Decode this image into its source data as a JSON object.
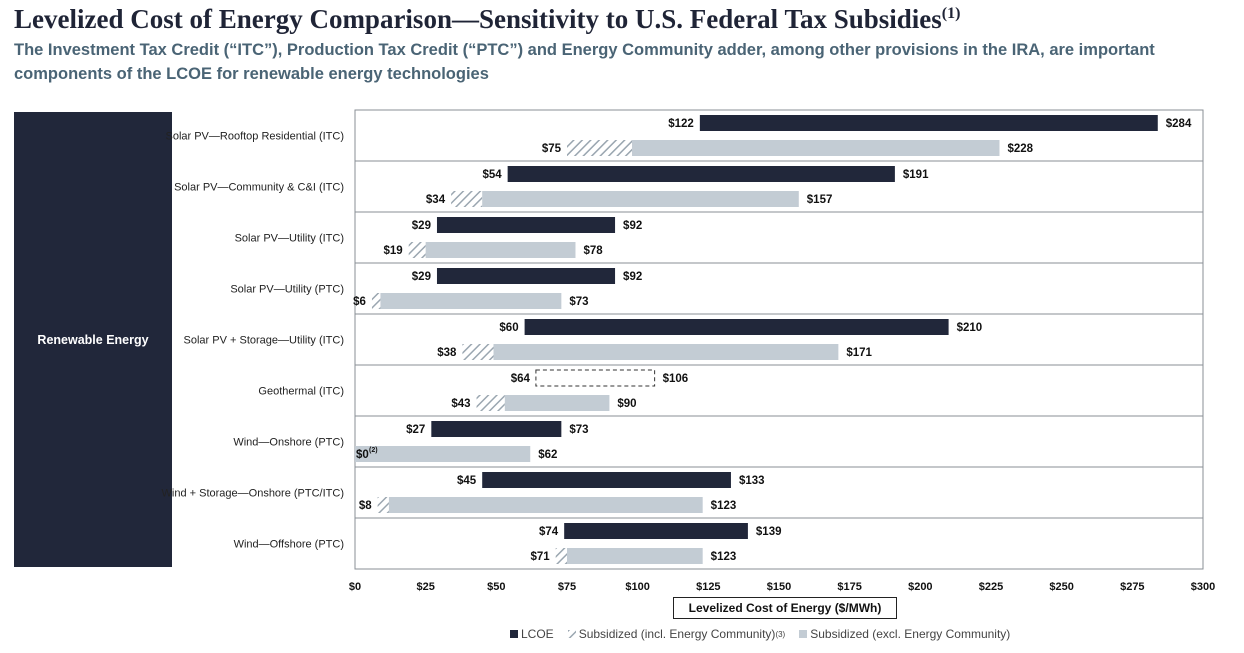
{
  "title": "Levelized Cost of Energy Comparison—Sensitivity to U.S. Federal Tax Subsidies",
  "title_note": "(1)",
  "subtitle": "The Investment Tax Credit (“ITC”), Production Tax Credit (“PTC”) and Energy Community adder, among other provisions in the IRA, are important components of the LCOE for renewable energy technologies",
  "category_group": "Renewable Energy",
  "colors": {
    "lcoe": "#21273a",
    "subsidized_excl": "#c3ccd4",
    "hatch": "#9aa6b0",
    "title": "#1f2436",
    "subtitle": "#4a6475"
  },
  "chart_data": {
    "type": "bar",
    "orientation": "horizontal",
    "bar_style": "floating-range",
    "categories": [
      "Solar PV—Rooftop Residential (ITC)",
      "Solar PV—Community & C&I (ITC)",
      "Solar PV—Utility (ITC)",
      "Solar PV—Utility (PTC)",
      "Solar PV + Storage—Utility (ITC)",
      "Geothermal (ITC)",
      "Wind—Onshore (PTC)",
      "Wind + Storage—Onshore (PTC/ITC)",
      "Wind—Offshore (PTC)"
    ],
    "lcoe": [
      {
        "low": 122,
        "high": 284,
        "low_label": "$122",
        "high_label": "$284"
      },
      {
        "low": 54,
        "high": 191,
        "low_label": "$54",
        "high_label": "$191"
      },
      {
        "low": 29,
        "high": 92,
        "low_label": "$29",
        "high_label": "$92"
      },
      {
        "low": 29,
        "high": 92,
        "low_label": "$29",
        "high_label": "$92"
      },
      {
        "low": 60,
        "high": 210,
        "low_label": "$60",
        "high_label": "$210"
      },
      {
        "low": 64,
        "high": 106,
        "low_label": "$64",
        "high_label": "$106",
        "dashed": true
      },
      {
        "low": 27,
        "high": 73,
        "low_label": "$27",
        "high_label": "$73"
      },
      {
        "low": 45,
        "high": 133,
        "low_label": "$45",
        "high_label": "$133"
      },
      {
        "low": 74,
        "high": 139,
        "low_label": "$74",
        "high_label": "$139"
      }
    ],
    "subsidized": [
      {
        "low": 75,
        "excl_low": 98,
        "high": 228,
        "low_label": "$75",
        "high_label": "$228"
      },
      {
        "low": 34,
        "excl_low": 45,
        "high": 157,
        "low_label": "$34",
        "high_label": "$157"
      },
      {
        "low": 19,
        "excl_low": 25,
        "high": 78,
        "low_label": "$19",
        "high_label": "$78"
      },
      {
        "low": 6,
        "excl_low": 9,
        "high": 73,
        "low_label": "$6",
        "high_label": "$73"
      },
      {
        "low": 38,
        "excl_low": 49,
        "high": 171,
        "low_label": "$38",
        "high_label": "$171"
      },
      {
        "low": 43,
        "excl_low": 53,
        "high": 90,
        "low_label": "$43",
        "high_label": "$90"
      },
      {
        "low": 0,
        "excl_low": 0,
        "high": 62,
        "low_label": "$0",
        "low_note": "(2)",
        "high_label": "$62"
      },
      {
        "low": 8,
        "excl_low": 12,
        "high": 123,
        "low_label": "$8",
        "high_label": "$123"
      },
      {
        "low": 71,
        "excl_low": 75,
        "high": 123,
        "low_label": "$71",
        "high_label": "$123"
      }
    ],
    "xlim": [
      0,
      300
    ],
    "xticks": [
      0,
      25,
      50,
      75,
      100,
      125,
      150,
      175,
      200,
      225,
      250,
      275,
      300
    ],
    "xtick_labels": [
      "$0",
      "$25",
      "$50",
      "$75",
      "$100",
      "$125",
      "$150",
      "$175",
      "$200",
      "$225",
      "$250",
      "$275",
      "$300"
    ],
    "xlabel": "Levelized Cost of Energy ($/MWh)",
    "legend": [
      {
        "key": "lcoe",
        "label": "LCOE"
      },
      {
        "key": "subsidized_incl",
        "label": "Subsidized (incl. Energy Community)",
        "note": "(3)"
      },
      {
        "key": "subsidized_excl",
        "label": "Subsidized (excl. Energy Community)"
      }
    ],
    "legend_position": "bottom"
  }
}
